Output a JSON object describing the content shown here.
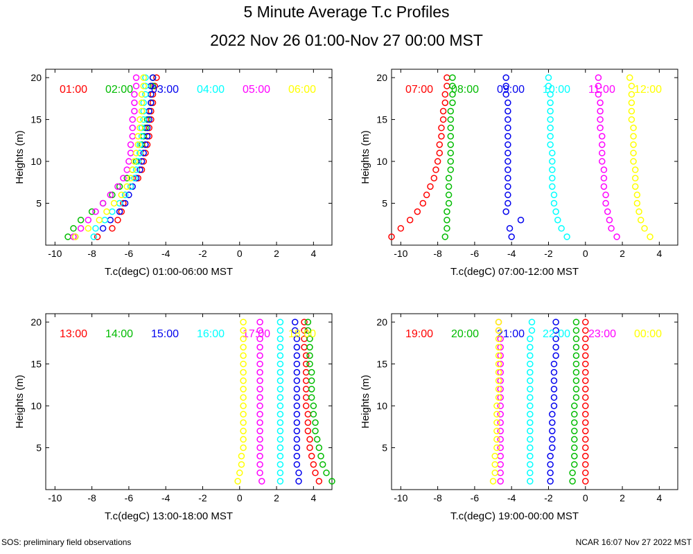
{
  "title": "5 Minute Average T.c Profiles",
  "subtitle": "2022 Nov 26 01:00-Nov 27 00:00 MST",
  "footer_left": "SOS: preliminary field observations",
  "footer_right": "NCAR 16:07 Nov 27 2022 MST",
  "colors": [
    "#ff0000",
    "#00bb00",
    "#0000ee",
    "#00ffff",
    "#ff00ff",
    "#ffff00"
  ],
  "chart_data": [
    {
      "type": "scatter",
      "xlabel": "T.c(degC) 01:00-06:00 MST",
      "ylabel": "Heights (m)",
      "xlim": [
        -10.5,
        5
      ],
      "ylim": [
        0,
        21
      ],
      "xticks": [
        "-10",
        "-8",
        "-6",
        "-4",
        "-2",
        "0",
        "2",
        "4"
      ],
      "yticks": [
        "5",
        "10",
        "15",
        "20"
      ],
      "heights": [
        1,
        2,
        3,
        4,
        5,
        6,
        7,
        8,
        9,
        10,
        11,
        12,
        13,
        14,
        15,
        16,
        17,
        18,
        19,
        20
      ],
      "series": [
        {
          "name": "01:00",
          "values": [
            -7.7,
            -6.9,
            -6.6,
            -6.4,
            -6.3,
            -6.2,
            -5.9,
            -5.5,
            -5.3,
            -5.2,
            -5.1,
            -5.0,
            -4.9,
            -4.9,
            -4.8,
            -4.8,
            -4.7,
            -4.7,
            -4.6,
            -4.5
          ]
        },
        {
          "name": "02:00",
          "values": [
            -9.3,
            -9.0,
            -8.6,
            -8.0,
            -7.4,
            -6.9,
            -6.5,
            -6.1,
            -5.8,
            -5.6,
            -5.4,
            -5.3,
            -5.2,
            -5.1,
            -5.0,
            -4.9,
            -4.8,
            -4.8,
            -4.7,
            -4.7
          ]
        },
        {
          "name": "03:00",
          "values": [
            -8.9,
            -7.4,
            -7.0,
            -6.5,
            -6.2,
            -6.0,
            -5.8,
            -5.6,
            -5.4,
            -5.3,
            -5.2,
            -5.1,
            -5.0,
            -5.0,
            -4.9,
            -4.9,
            -4.8,
            -4.8,
            -4.8,
            -4.7
          ]
        },
        {
          "name": "04:00",
          "values": [
            -7.9,
            -7.8,
            -7.3,
            -6.9,
            -6.5,
            -6.2,
            -5.9,
            -5.7,
            -5.6,
            -5.5,
            -5.4,
            -5.4,
            -5.3,
            -5.3,
            -5.2,
            -5.2,
            -5.2,
            -5.1,
            -5.1,
            -5.1
          ]
        },
        {
          "name": "05:00",
          "values": [
            -9.0,
            -8.6,
            -8.2,
            -7.8,
            -7.4,
            -7.0,
            -6.6,
            -6.3,
            -6.1,
            -6.0,
            -5.9,
            -5.9,
            -5.8,
            -5.8,
            -5.8,
            -5.7,
            -5.7,
            -5.7,
            -5.6,
            -5.6
          ]
        },
        {
          "name": "06:00",
          "values": [
            -8.9,
            -8.2,
            -7.6,
            -7.2,
            -6.8,
            -6.4,
            -6.1,
            -5.9,
            -5.8,
            -5.7,
            -5.6,
            -5.5,
            -5.5,
            -5.4,
            -5.4,
            -5.3,
            -5.3,
            -5.3,
            -5.2,
            -5.2
          ]
        }
      ]
    },
    {
      "type": "scatter",
      "xlabel": "T.c(degC) 07:00-12:00 MST",
      "ylabel": "Heights (m)",
      "xlim": [
        -10.5,
        5
      ],
      "ylim": [
        0,
        21
      ],
      "xticks": [
        "-10",
        "-8",
        "-6",
        "-4",
        "-2",
        "0",
        "2",
        "4"
      ],
      "yticks": [
        "5",
        "10",
        "15",
        "20"
      ],
      "heights": [
        1,
        2,
        3,
        4,
        5,
        6,
        7,
        8,
        9,
        10,
        11,
        12,
        13,
        14,
        15,
        16,
        17,
        18,
        19,
        20
      ],
      "series": [
        {
          "name": "07:00",
          "values": [
            -10.5,
            -10.0,
            -9.5,
            -9.1,
            -8.8,
            -8.6,
            -8.4,
            -8.2,
            -8.1,
            -8.0,
            -7.9,
            -7.9,
            -7.8,
            -7.8,
            -7.7,
            -7.7,
            -7.6,
            -7.6,
            -7.5,
            -7.5
          ]
        },
        {
          "name": "08:00",
          "values": [
            -7.6,
            -7.5,
            -7.5,
            -7.5,
            -7.4,
            -7.4,
            -7.4,
            -7.4,
            -7.3,
            -7.3,
            -7.3,
            -7.3,
            -7.3,
            -7.3,
            -7.3,
            -7.3,
            -7.2,
            -7.2,
            -7.2,
            -7.2
          ]
        },
        {
          "name": "09:00",
          "values": [
            -4.0,
            -4.1,
            -3.5,
            -4.3,
            -4.2,
            -4.2,
            -4.2,
            -4.2,
            -4.2,
            -4.2,
            -4.2,
            -4.2,
            -4.2,
            -4.2,
            -4.2,
            -4.2,
            -4.2,
            -4.3,
            -4.3,
            -4.3
          ]
        },
        {
          "name": "10:00",
          "values": [
            -1.0,
            -1.3,
            -1.5,
            -1.6,
            -1.7,
            -1.7,
            -1.8,
            -1.8,
            -1.8,
            -1.8,
            -1.8,
            -1.9,
            -1.9,
            -1.9,
            -1.9,
            -1.9,
            -1.9,
            -1.9,
            -2.0,
            -2.0
          ]
        },
        {
          "name": "11:00",
          "values": [
            1.7,
            1.4,
            1.3,
            1.2,
            1.1,
            1.1,
            1.0,
            1.0,
            1.0,
            0.9,
            0.9,
            0.9,
            0.9,
            0.8,
            0.8,
            0.8,
            0.8,
            0.7,
            0.7,
            0.7
          ]
        },
        {
          "name": "12:00",
          "values": [
            3.5,
            3.2,
            3.0,
            2.9,
            2.8,
            2.8,
            2.7,
            2.7,
            2.7,
            2.6,
            2.6,
            2.6,
            2.6,
            2.6,
            2.5,
            2.5,
            2.5,
            2.5,
            2.5,
            2.4
          ]
        }
      ]
    },
    {
      "type": "scatter",
      "xlabel": "T.c(degC) 13:00-18:00 MST",
      "ylabel": "Heights (m)",
      "xlim": [
        -10.5,
        5
      ],
      "ylim": [
        0,
        21
      ],
      "xticks": [
        "-10",
        "-8",
        "-6",
        "-4",
        "-2",
        "0",
        "2",
        "4"
      ],
      "yticks": [
        "5",
        "10",
        "15",
        "20"
      ],
      "heights": [
        1,
        2,
        3,
        4,
        5,
        6,
        7,
        8,
        9,
        10,
        11,
        12,
        13,
        14,
        15,
        16,
        17,
        18,
        19,
        20
      ],
      "series": [
        {
          "name": "13:00",
          "values": [
            4.3,
            4.1,
            4.0,
            3.9,
            3.8,
            3.8,
            3.7,
            3.7,
            3.7,
            3.6,
            3.6,
            3.6,
            3.6,
            3.6,
            3.6,
            3.6,
            3.5,
            3.5,
            3.5,
            3.5
          ]
        },
        {
          "name": "14:00",
          "values": [
            5.0,
            4.7,
            4.5,
            4.4,
            4.3,
            4.2,
            4.1,
            4.1,
            4.0,
            4.0,
            3.9,
            3.9,
            3.9,
            3.9,
            3.8,
            3.8,
            3.8,
            3.8,
            3.7,
            3.7
          ]
        },
        {
          "name": "15:00",
          "values": [
            3.2,
            3.2,
            3.1,
            3.1,
            3.1,
            3.1,
            3.1,
            3.1,
            3.1,
            3.1,
            3.1,
            3.1,
            3.1,
            3.1,
            3.1,
            3.1,
            3.1,
            3.1,
            3.0,
            3.0
          ]
        },
        {
          "name": "16:00",
          "values": [
            2.2,
            2.2,
            2.2,
            2.2,
            2.2,
            2.2,
            2.2,
            2.2,
            2.2,
            2.2,
            2.2,
            2.2,
            2.2,
            2.2,
            2.2,
            2.2,
            2.2,
            2.2,
            2.2,
            2.2
          ]
        },
        {
          "name": "17:00",
          "values": [
            1.2,
            1.1,
            1.1,
            1.1,
            1.1,
            1.1,
            1.1,
            1.1,
            1.1,
            1.1,
            1.1,
            1.1,
            1.1,
            1.1,
            1.1,
            1.1,
            1.1,
            1.1,
            1.1,
            1.1
          ]
        },
        {
          "name": "18:00",
          "values": [
            -0.1,
            0.0,
            0.1,
            0.1,
            0.2,
            0.2,
            0.2,
            0.2,
            0.2,
            0.2,
            0.2,
            0.2,
            0.2,
            0.2,
            0.2,
            0.2,
            0.2,
            0.2,
            0.2,
            0.2
          ]
        }
      ]
    },
    {
      "type": "scatter",
      "xlabel": "T.c(degC) 19:00-00:00 MST",
      "ylabel": "Heights (m)",
      "xlim": [
        -10.5,
        5
      ],
      "ylim": [
        0,
        21
      ],
      "xticks": [
        "-10",
        "-8",
        "-6",
        "-4",
        "-2",
        "0",
        "2",
        "4"
      ],
      "yticks": [
        "5",
        "10",
        "15",
        "20"
      ],
      "heights": [
        1,
        2,
        3,
        4,
        5,
        6,
        7,
        8,
        9,
        10,
        11,
        12,
        13,
        14,
        15,
        16,
        17,
        18,
        19,
        20
      ],
      "series": [
        {
          "name": "19:00",
          "values": [
            0.0,
            0.0,
            0.0,
            0.0,
            0.0,
            0.0,
            0.0,
            0.0,
            0.0,
            0.0,
            0.0,
            0.0,
            0.0,
            0.0,
            0.0,
            0.0,
            0.0,
            0.0,
            0.0,
            0.0
          ]
        },
        {
          "name": "20:00",
          "values": [
            -0.7,
            -0.7,
            -0.6,
            -0.6,
            -0.6,
            -0.6,
            -0.6,
            -0.6,
            -0.6,
            -0.6,
            -0.5,
            -0.5,
            -0.5,
            -0.5,
            -0.5,
            -0.5,
            -0.5,
            -0.5,
            -0.5,
            -0.5
          ]
        },
        {
          "name": "21:00",
          "values": [
            -1.9,
            -1.9,
            -1.9,
            -1.9,
            -1.8,
            -1.8,
            -1.8,
            -1.8,
            -1.8,
            -1.7,
            -1.7,
            -1.7,
            -1.7,
            -1.7,
            -1.7,
            -1.6,
            -1.6,
            -1.6,
            -1.6,
            -1.6
          ]
        },
        {
          "name": "22:00",
          "values": [
            -3.0,
            -3.0,
            -3.0,
            -3.0,
            -3.0,
            -3.0,
            -3.0,
            -3.0,
            -3.0,
            -3.0,
            -3.0,
            -3.0,
            -3.0,
            -3.0,
            -3.0,
            -3.0,
            -3.0,
            -3.0,
            -2.9,
            -2.9
          ]
        },
        {
          "name": "23:00",
          "values": [
            -4.6,
            -4.6,
            -4.6,
            -4.6,
            -4.6,
            -4.6,
            -4.6,
            -4.6,
            -4.6,
            -4.6,
            -4.6,
            -4.6,
            -4.6,
            -4.6,
            -4.6,
            -4.6,
            -4.6,
            -4.6,
            -4.7,
            -4.7
          ]
        },
        {
          "name": "00:00",
          "values": [
            -5.0,
            -4.9,
            -4.9,
            -4.9,
            -4.8,
            -4.8,
            -4.8,
            -4.8,
            -4.8,
            -4.8,
            -4.7,
            -4.7,
            -4.7,
            -4.7,
            -4.7,
            -4.7,
            -4.7,
            -4.7,
            -4.7,
            -4.7
          ]
        }
      ]
    }
  ]
}
